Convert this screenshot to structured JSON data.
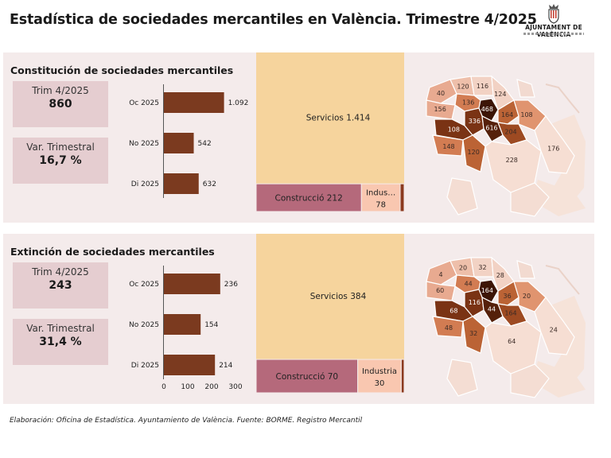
{
  "header": {
    "title": "Estadística de sociedades mercantiles en València. Trimestre 4/2025",
    "logo_text": "AJUNTAMENT DE VALÈNCIA"
  },
  "constitution": {
    "title": "Constitución de sociedades mercantiles",
    "kpi_period_label": "Trim 4/2025",
    "kpi_period_value": "860",
    "kpi_var_label": "Var. Trimestral",
    "kpi_var_value": "16,7 %",
    "map_values": [
      "40",
      "120",
      "116",
      "156",
      "136",
      "124",
      "468",
      "164",
      "108",
      "336",
      "616",
      "204",
      "108",
      "148",
      "120",
      "228",
      "176"
    ]
  },
  "extinction": {
    "title": "Extinción de sociedades mercantiles",
    "kpi_period_label": "Trim 4/2025",
    "kpi_period_value": "243",
    "kpi_var_label": "Var. Trimestral",
    "kpi_var_value": "31,4 %",
    "map_values": [
      "4",
      "20",
      "32",
      "60",
      "44",
      "28",
      "164",
      "36",
      "20",
      "116",
      "44",
      "164",
      "68",
      "48",
      "32",
      "64",
      "24"
    ]
  },
  "chart_data": [
    {
      "type": "bar",
      "orientation": "horizontal",
      "categories": [
        "Oc 2025",
        "No 2025",
        "Di 2025"
      ],
      "values": [
        1092,
        542,
        632
      ],
      "value_labels": [
        "1.092",
        "542",
        "632"
      ],
      "title": "Constitución de sociedades mercantiles",
      "xlim": [
        0,
        1300
      ],
      "bar_color": "#7b3a1f"
    },
    {
      "type": "treemap",
      "items": [
        {
          "label": "Servicios",
          "value": 1414,
          "value_label": "1.414",
          "color": "#f6d49d"
        },
        {
          "label": "Construcció",
          "value": 212,
          "value_label": "212",
          "color": "#b5697b"
        },
        {
          "label": "Indus…",
          "value": 78,
          "value_label": "78",
          "color": "#f9c7b0"
        },
        {
          "label": "",
          "value": 8,
          "value_label": "",
          "color": "#8b3a1f"
        }
      ]
    },
    {
      "type": "bar",
      "orientation": "horizontal",
      "categories": [
        "Oc 2025",
        "No 2025",
        "Di 2025"
      ],
      "values": [
        236,
        154,
        214
      ],
      "value_labels": [
        "236",
        "154",
        "214"
      ],
      "title": "Extinción de sociedades mercantiles",
      "xlim": [
        0,
        300
      ],
      "x_ticks": [
        "0",
        "100",
        "200",
        "300"
      ],
      "bar_color": "#7b3a1f"
    },
    {
      "type": "treemap",
      "items": [
        {
          "label": "Servicios",
          "value": 384,
          "value_label": "384",
          "color": "#f6d49d"
        },
        {
          "label": "Construcció",
          "value": 70,
          "value_label": "70",
          "color": "#b5697b"
        },
        {
          "label": "Industria",
          "value": 30,
          "value_label": "30",
          "color": "#f9c7b0"
        },
        {
          "label": "",
          "value": 2,
          "value_label": "",
          "color": "#8b3a1f"
        }
      ]
    }
  ],
  "footer": {
    "source": "Elaboración: Oficina de Estadística. Ayuntamiento de València. Fuente: BORME. Registro Mercantil"
  }
}
